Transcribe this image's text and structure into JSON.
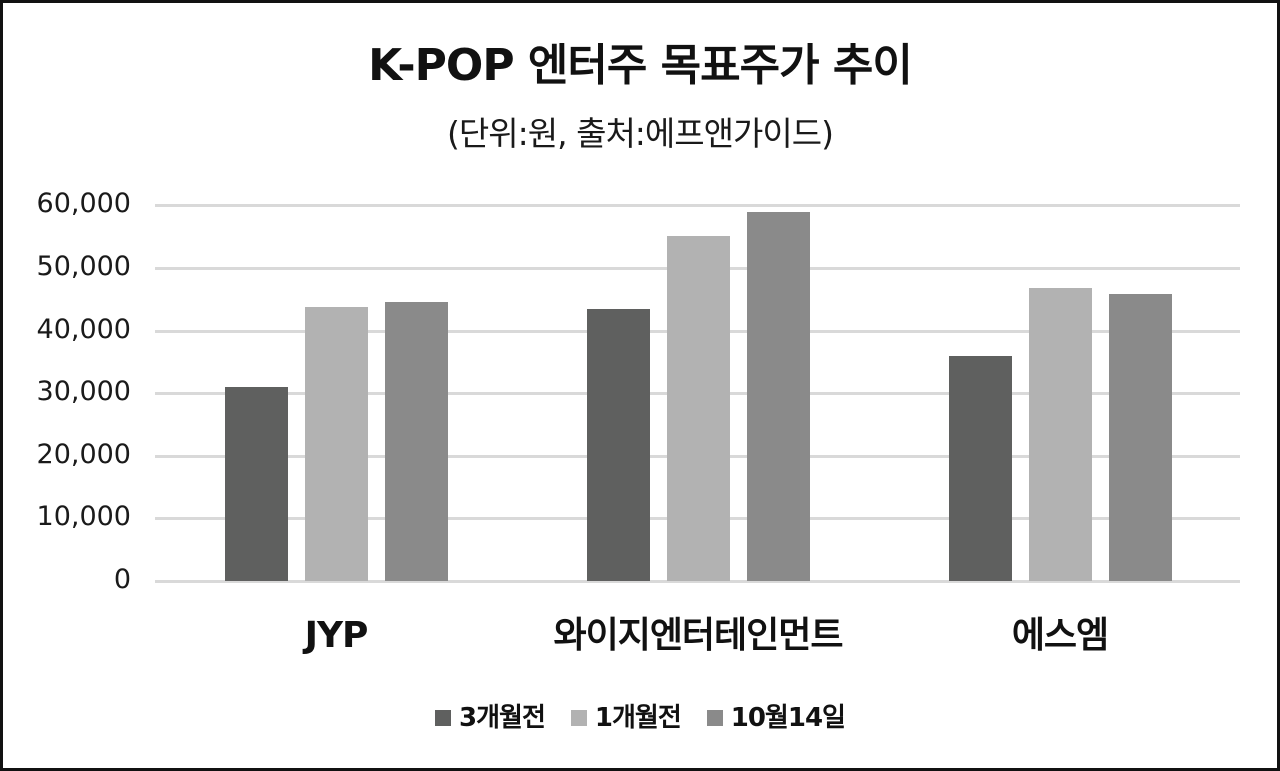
{
  "header": {
    "title": "K-POP 엔터주 목표주가 추이",
    "subtitle": "(단위:원, 출처:에프앤가이드)"
  },
  "axis": {
    "y_ticks": [
      "60,000",
      "50,000",
      "40,000",
      "30,000",
      "20,000",
      "10,000",
      "0"
    ]
  },
  "categories": [
    "JYP",
    "와이지엔터테인먼트",
    "에스엠"
  ],
  "legend": [
    {
      "label": "3개월전",
      "color": "#5f605f"
    },
    {
      "label": "1개월전",
      "color": "#b2b2b2"
    },
    {
      "label": "10월14일",
      "color": "#8a8a8a"
    }
  ],
  "chart_data": {
    "type": "bar",
    "title": "K-POP 엔터주 목표주가 추이",
    "subtitle": "(단위:원, 출처:에프앤가이드)",
    "categories": [
      "JYP",
      "와이지엔터테인먼트",
      "에스엠"
    ],
    "series": [
      {
        "name": "3개월전",
        "color": "#5f605f",
        "values": [
          31000,
          43400,
          36000
        ]
      },
      {
        "name": "1개월전",
        "color": "#b2b2b2",
        "values": [
          43800,
          55100,
          46800
        ]
      },
      {
        "name": "10월14일",
        "color": "#8a8a8a",
        "values": [
          44600,
          58900,
          45800
        ]
      }
    ],
    "xlabel": "",
    "ylabel": "",
    "ylim": [
      0,
      60000
    ],
    "yticks": [
      0,
      10000,
      20000,
      30000,
      40000,
      50000,
      60000
    ],
    "grid": true,
    "legend_position": "bottom"
  }
}
